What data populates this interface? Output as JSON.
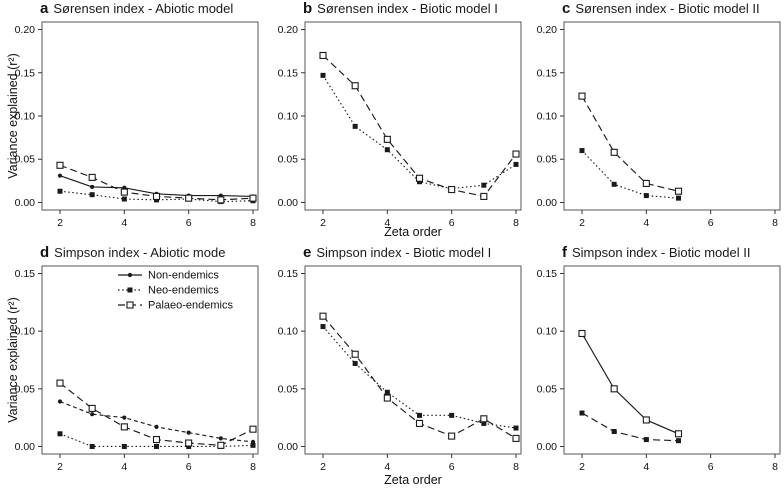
{
  "figure": {
    "ylabel": "Variance explained (r²)",
    "xlabel": "Zeta order",
    "background": "#ffffff",
    "line_color": "#1a1a1a",
    "text_color": "#111111",
    "box_color": "#555555"
  },
  "chart_data": {
    "type": "line",
    "layout": "2 rows x 3 columns, y-axis label per row, x-axis label under middle column",
    "legend": {
      "position": "inside panel d, top center",
      "items": [
        {
          "label": "Non-endemics",
          "marker": "filled-circle",
          "line": "solid"
        },
        {
          "label": "Neo-endemics",
          "marker": "filled-square",
          "line": "dotted"
        },
        {
          "label": "Palaeo-endemics",
          "marker": "open-square",
          "line": "dashed"
        }
      ]
    },
    "panels": [
      {
        "letter": "a",
        "title": "Sørensen index - Abiotic model",
        "xlim": [
          2,
          8
        ],
        "xticks": [
          2,
          4,
          6,
          8
        ],
        "ylim": [
          0,
          0.2
        ],
        "yticks": [
          0,
          0.05,
          0.1,
          0.15,
          0.2
        ],
        "x": [
          2,
          3,
          4,
          5,
          6,
          7,
          8
        ],
        "show_legend": false,
        "series": [
          {
            "name": "Non-endemics",
            "marker": "filled-circle",
            "line": "solid",
            "values": [
              0.031,
              0.018,
              0.017,
              0.01,
              0.008,
              0.008,
              0.007
            ]
          },
          {
            "name": "Neo-endemics",
            "marker": "filled-square",
            "line": "dotted",
            "values": [
              0.013,
              0.009,
              0.004,
              0.003,
              0.004,
              0.001,
              0.002
            ]
          },
          {
            "name": "Palaeo-endemics",
            "marker": "open-square",
            "line": "dashed",
            "values": [
              0.043,
              0.029,
              0.012,
              0.007,
              0.005,
              0.003,
              0.005
            ]
          }
        ]
      },
      {
        "letter": "b",
        "title": "Sørensen index - Biotic model I",
        "xlim": [
          2,
          8
        ],
        "xticks": [
          2,
          4,
          6,
          8
        ],
        "ylim": [
          0,
          0.2
        ],
        "yticks": [
          0,
          0.05,
          0.1,
          0.15,
          0.2
        ],
        "x": [
          2,
          3,
          4,
          5,
          6,
          7,
          8
        ],
        "show_legend": false,
        "series": [
          {
            "name": "Neo-endemics",
            "marker": "filled-square",
            "line": "dotted",
            "values": [
              0.147,
              0.088,
              0.061,
              0.024,
              0.016,
              0.02,
              0.044
            ]
          },
          {
            "name": "Palaeo-endemics",
            "marker": "open-square",
            "line": "dashed",
            "values": [
              0.17,
              0.135,
              0.073,
              0.028,
              0.015,
              0.007,
              0.056
            ]
          }
        ]
      },
      {
        "letter": "c",
        "title": "Sørensen index - Biotic model II",
        "xlim": [
          2,
          8
        ],
        "xticks": [
          2,
          4,
          6,
          8
        ],
        "ylim": [
          0,
          0.2
        ],
        "yticks": [
          0,
          0.05,
          0.1,
          0.15,
          0.2
        ],
        "x": [
          2,
          3,
          4,
          5
        ],
        "show_legend": false,
        "series": [
          {
            "name": "Neo-endemics",
            "marker": "filled-square",
            "line": "dotted",
            "values": [
              0.06,
              0.021,
              0.008,
              0.005
            ]
          },
          {
            "name": "Palaeo-endemics",
            "marker": "open-square",
            "line": "dashed",
            "values": [
              0.123,
              0.058,
              0.022,
              0.013
            ]
          }
        ]
      },
      {
        "letter": "d",
        "title": "Simpson index - Abiotic mode",
        "xlim": [
          2,
          8
        ],
        "xticks": [
          2,
          4,
          6,
          8
        ],
        "ylim": [
          0,
          0.15
        ],
        "yticks": [
          0,
          0.05,
          0.1,
          0.15
        ],
        "x": [
          2,
          3,
          4,
          5,
          6,
          7,
          8
        ],
        "show_legend": true,
        "series": [
          {
            "name": "Non-endemics",
            "marker": "filled-circle",
            "line": "shortdash",
            "values": [
              0.039,
              0.028,
              0.025,
              0.017,
              0.012,
              0.007,
              0.004
            ]
          },
          {
            "name": "Neo-endemics",
            "marker": "filled-square",
            "line": "dotted",
            "values": [
              0.011,
              0.0,
              0.0,
              0.0,
              0.0,
              0.0,
              0.001
            ]
          },
          {
            "name": "Palaeo-endemics",
            "marker": "open-square",
            "line": "dashed",
            "values": [
              0.055,
              0.033,
              0.017,
              0.006,
              0.003,
              0.001,
              0.015
            ]
          }
        ]
      },
      {
        "letter": "e",
        "title": "Simpson index - Biotic model I",
        "xlim": [
          2,
          8
        ],
        "xticks": [
          2,
          4,
          6,
          8
        ],
        "ylim": [
          0,
          0.15
        ],
        "yticks": [
          0,
          0.05,
          0.1,
          0.15
        ],
        "x": [
          2,
          3,
          4,
          5,
          6,
          7,
          8
        ],
        "show_legend": false,
        "series": [
          {
            "name": "Neo-endemics",
            "marker": "filled-square",
            "line": "dotted",
            "values": [
              0.104,
              0.072,
              0.047,
              0.027,
              0.027,
              0.02,
              0.016
            ]
          },
          {
            "name": "Palaeo-endemics",
            "marker": "open-square",
            "line": "dashed",
            "values": [
              0.113,
              0.08,
              0.042,
              0.02,
              0.009,
              0.024,
              0.007
            ]
          }
        ]
      },
      {
        "letter": "f",
        "title": "Simpson index - Biotic model II",
        "xlim": [
          2,
          8
        ],
        "xticks": [
          2,
          4,
          6,
          8
        ],
        "ylim": [
          0,
          0.15
        ],
        "yticks": [
          0,
          0.05,
          0.1,
          0.15
        ],
        "x": [
          2,
          3,
          4,
          5
        ],
        "show_legend": false,
        "series": [
          {
            "name": "Neo-endemics",
            "marker": "filled-square",
            "line": "dashed",
            "values": [
              0.029,
              0.013,
              0.006,
              0.005
            ]
          },
          {
            "name": "Palaeo-endemics",
            "marker": "open-square",
            "line": "solid",
            "values": [
              0.098,
              0.05,
              0.023,
              0.011
            ]
          }
        ]
      }
    ]
  }
}
